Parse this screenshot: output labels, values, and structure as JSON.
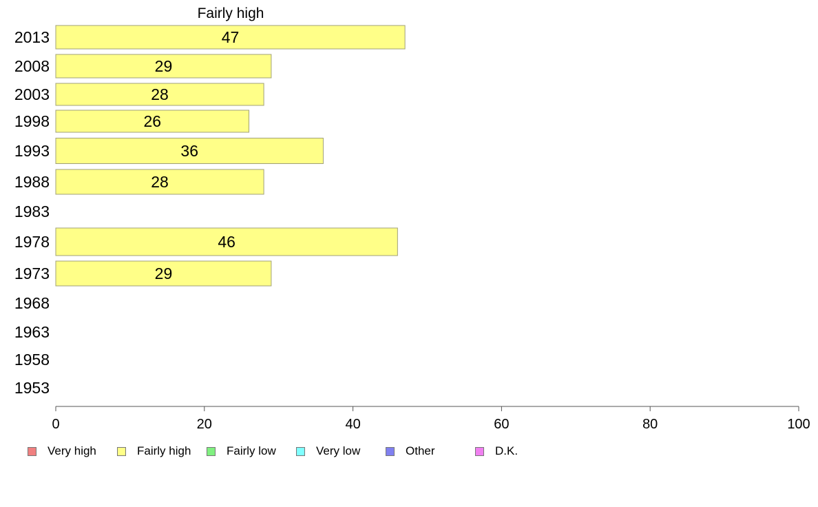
{
  "chart_data": {
    "type": "bar",
    "orientation": "horizontal",
    "title": "Fairly high",
    "categories": [
      "2013",
      "2008",
      "2003",
      "1998",
      "1993",
      "1988",
      "1983",
      "1978",
      "1973",
      "1968",
      "1963",
      "1958",
      "1953"
    ],
    "series": [
      {
        "name": "Fairly high",
        "values": [
          47,
          29,
          28,
          26,
          36,
          28,
          null,
          46,
          29,
          null,
          null,
          null,
          null
        ]
      }
    ],
    "xlim": [
      0,
      100
    ],
    "xticks": [
      "0",
      "20",
      "40",
      "60",
      "80",
      "100"
    ],
    "grid": false,
    "legend_placement": "bottom",
    "bar_color": "#ffff88",
    "bar_border": "#a0a078"
  },
  "legend": [
    {
      "label": "Very high",
      "color": "#f08080"
    },
    {
      "label": "Fairly high",
      "color": "#ffff88"
    },
    {
      "label": "Fairly low",
      "color": "#80f080"
    },
    {
      "label": "Very low",
      "color": "#80ffff"
    },
    {
      "label": "Other",
      "color": "#8080f0"
    },
    {
      "label": "D.K.",
      "color": "#f080f0"
    }
  ]
}
